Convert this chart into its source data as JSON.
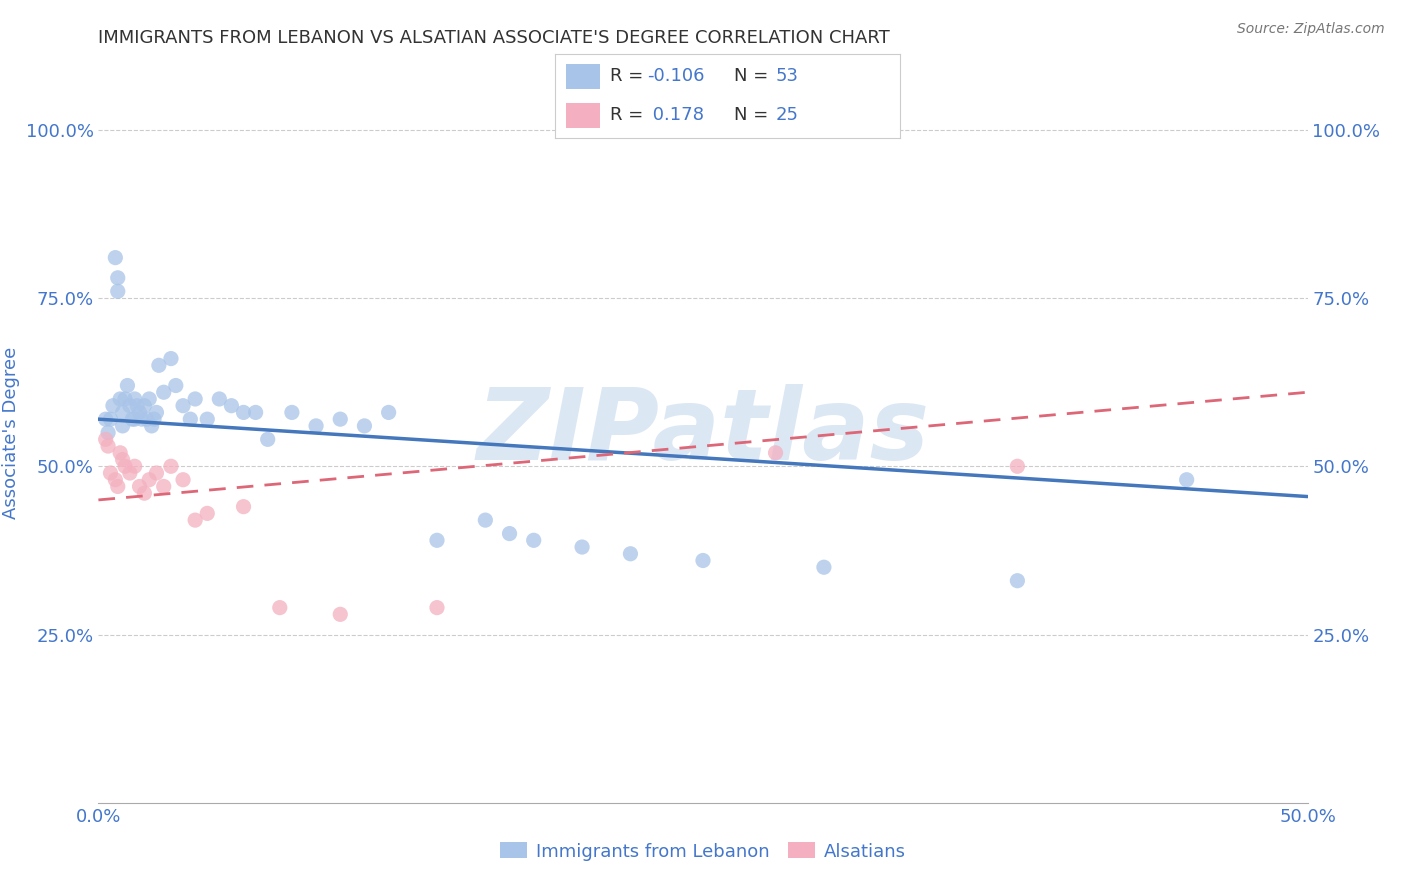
{
  "title": "IMMIGRANTS FROM LEBANON VS ALSATIAN ASSOCIATE'S DEGREE CORRELATION CHART",
  "source": "Source: ZipAtlas.com",
  "ylabel_label": "Associate's Degree",
  "xlim": [
    0.0,
    0.5
  ],
  "ylim": [
    0.0,
    1.1
  ],
  "xticks": [
    0.0,
    0.5
  ],
  "xtick_labels": [
    "0.0%",
    "50.0%"
  ],
  "ytick_labels": [
    "25.0%",
    "50.0%",
    "75.0%",
    "100.0%"
  ],
  "yticks": [
    0.25,
    0.5,
    0.75,
    1.0
  ],
  "blue_color": "#a8c4e8",
  "pink_color": "#f4b0c0",
  "line_blue": "#4477bb",
  "line_pink": "#dd6677",
  "text_color": "#4477cc",
  "title_color": "#333333",
  "watermark_color": "#c5d8ed",
  "blue_scatter_x": [
    0.003,
    0.004,
    0.005,
    0.006,
    0.007,
    0.008,
    0.008,
    0.009,
    0.01,
    0.01,
    0.011,
    0.012,
    0.013,
    0.014,
    0.015,
    0.015,
    0.016,
    0.017,
    0.018,
    0.019,
    0.02,
    0.021,
    0.022,
    0.023,
    0.024,
    0.025,
    0.027,
    0.03,
    0.032,
    0.035,
    0.038,
    0.04,
    0.045,
    0.05,
    0.055,
    0.06,
    0.065,
    0.07,
    0.08,
    0.09,
    0.1,
    0.11,
    0.12,
    0.14,
    0.16,
    0.17,
    0.18,
    0.2,
    0.22,
    0.25,
    0.3,
    0.38,
    0.45
  ],
  "blue_scatter_y": [
    0.57,
    0.55,
    0.57,
    0.59,
    0.81,
    0.78,
    0.76,
    0.6,
    0.58,
    0.56,
    0.6,
    0.62,
    0.59,
    0.57,
    0.6,
    0.57,
    0.59,
    0.58,
    0.57,
    0.59,
    0.57,
    0.6,
    0.56,
    0.57,
    0.58,
    0.65,
    0.61,
    0.66,
    0.62,
    0.59,
    0.57,
    0.6,
    0.57,
    0.6,
    0.59,
    0.58,
    0.58,
    0.54,
    0.58,
    0.56,
    0.57,
    0.56,
    0.58,
    0.39,
    0.42,
    0.4,
    0.39,
    0.38,
    0.37,
    0.36,
    0.35,
    0.33,
    0.48
  ],
  "pink_scatter_x": [
    0.003,
    0.004,
    0.005,
    0.007,
    0.008,
    0.009,
    0.01,
    0.011,
    0.013,
    0.015,
    0.017,
    0.019,
    0.021,
    0.024,
    0.027,
    0.03,
    0.035,
    0.04,
    0.045,
    0.06,
    0.075,
    0.1,
    0.14,
    0.28,
    0.38
  ],
  "pink_scatter_y": [
    0.54,
    0.53,
    0.49,
    0.48,
    0.47,
    0.52,
    0.51,
    0.5,
    0.49,
    0.5,
    0.47,
    0.46,
    0.48,
    0.49,
    0.47,
    0.5,
    0.48,
    0.42,
    0.43,
    0.44,
    0.29,
    0.28,
    0.29,
    0.52,
    0.5
  ],
  "blue_line_x0": 0.0,
  "blue_line_y0": 0.57,
  "blue_line_x1": 0.5,
  "blue_line_y1": 0.455,
  "pink_line_x0": 0.0,
  "pink_line_y0": 0.45,
  "pink_line_x1": 0.5,
  "pink_line_y1": 0.61
}
